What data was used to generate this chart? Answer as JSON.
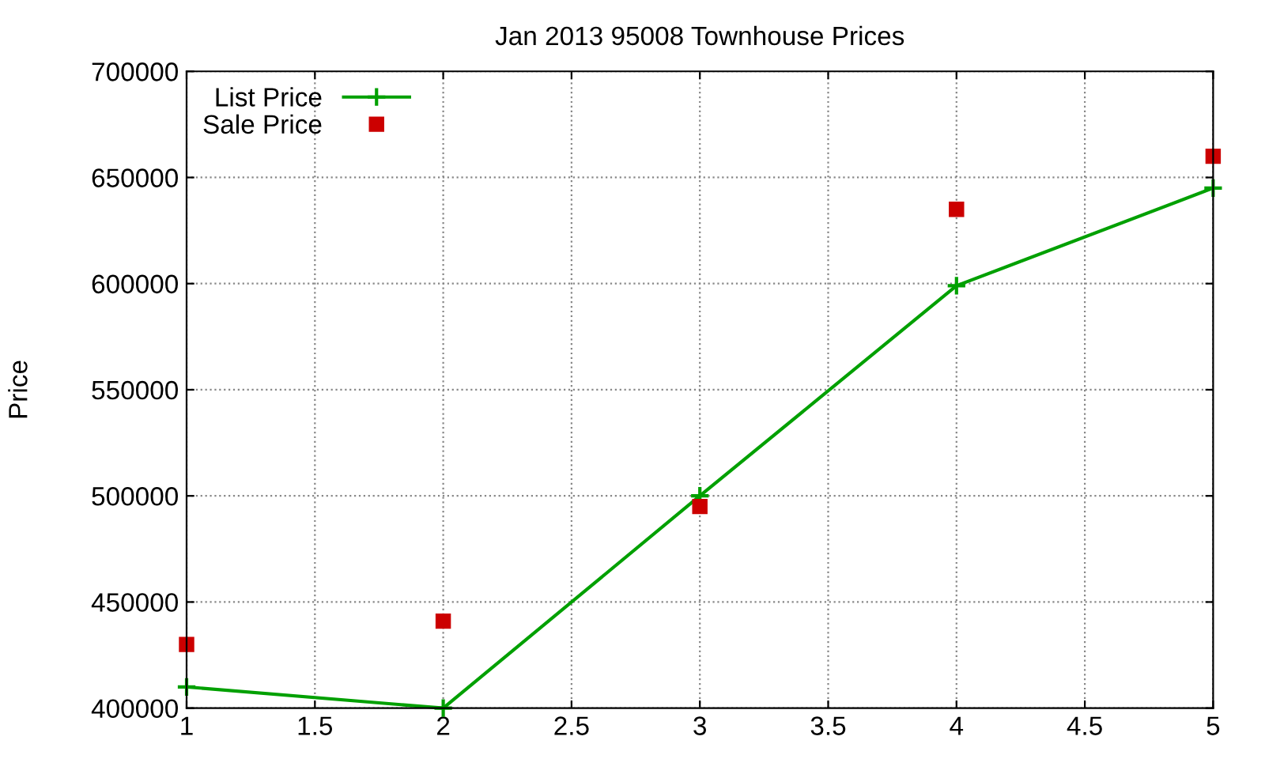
{
  "chart_data": {
    "type": "line",
    "title": "Jan 2013 95008 Townhouse Prices",
    "ylabel": "Price",
    "x": [
      1,
      2,
      3,
      4,
      5
    ],
    "series": [
      {
        "name": "List Price",
        "marker": "cross",
        "color": "#00a000",
        "values": [
          410000,
          400000,
          500000,
          599000,
          645000
        ]
      },
      {
        "name": "Sale Price",
        "type": "scatter",
        "marker": "square",
        "color": "#cc0000",
        "values": [
          430000,
          441000,
          495000,
          635000,
          660000
        ]
      }
    ],
    "xlim": [
      1,
      5
    ],
    "xticks": [
      1,
      1.5,
      2,
      2.5,
      3,
      3.5,
      4,
      4.5,
      5
    ],
    "ylim": [
      400000,
      700000
    ],
    "yticks": [
      400000,
      450000,
      500000,
      550000,
      600000,
      650000,
      700000
    ],
    "grid": true,
    "legend": "top left"
  }
}
